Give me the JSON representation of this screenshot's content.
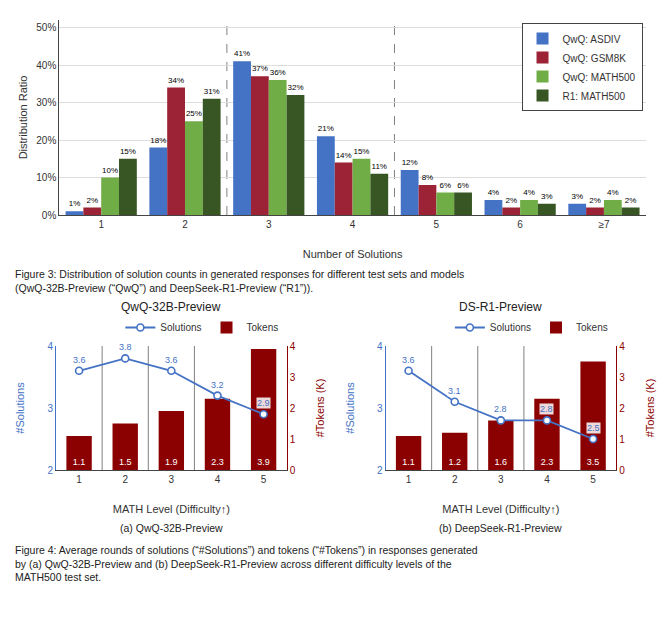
{
  "chart_data": [
    {
      "type": "bar",
      "categories": [
        "1",
        "2",
        "3",
        "4",
        "5",
        "6",
        "≥7"
      ],
      "series": [
        {
          "name": "QwQ: ASDIV",
          "color": "#4472C4",
          "values": [
            1,
            18,
            41,
            21,
            12,
            4,
            3
          ],
          "value_labels": [
            "1%",
            "18%",
            "41%",
            "21%",
            "12%",
            "4%",
            "3%"
          ]
        },
        {
          "name": "QwQ: GSM8K",
          "color": "#9B2335",
          "values": [
            2,
            34,
            37,
            14,
            8,
            2,
            2
          ],
          "value_labels": [
            "2%",
            "34%",
            "37%",
            "14%",
            "8%",
            "2%",
            "2%"
          ]
        },
        {
          "name": "QwQ: MATH500",
          "color": "#70AD47",
          "values": [
            10,
            25,
            36,
            15,
            6,
            4,
            4
          ],
          "value_labels": [
            "10%",
            "25%",
            "36%",
            "15%",
            "6%",
            "4%",
            "4%"
          ]
        },
        {
          "name": "R1: MATH500",
          "color": "#375623",
          "values": [
            15,
            31,
            32,
            11,
            6,
            3,
            2
          ],
          "value_labels": [
            "15%",
            "31%",
            "32%",
            "11%",
            "6%",
            "3%",
            "2%"
          ]
        }
      ],
      "xlabel": "Number of Solutions",
      "ylabel": "Distribution Ratio",
      "ylim": [
        0,
        52
      ],
      "yticks": [
        {
          "value": 0,
          "label": "0%"
        },
        {
          "value": 10,
          "label": "10%"
        },
        {
          "value": 20,
          "label": "20%"
        },
        {
          "value": 30,
          "label": "30%"
        },
        {
          "value": 40,
          "label": "40%"
        },
        {
          "value": 50,
          "label": "50%"
        }
      ],
      "grid": true,
      "legend": "upper right",
      "data_labels": true,
      "vlines": [
        1.5,
        3.5
      ],
      "annotations": [
        "Figure 3: Distribution of solution counts in generated responses for different test sets and models\n(QwQ-32B-Preview (“QwQ”) and DeepSeek-R1-Preview (“R1”))."
      ]
    },
    {
      "type": "combo",
      "title": "QwQ-32B-Preview",
      "subtitle": "(a) QwQ-32B-Preview",
      "x": [
        1,
        2,
        3,
        4,
        5
      ],
      "xlim": [
        0.5,
        5.5
      ],
      "xticks": [
        1,
        2,
        3,
        4,
        5
      ],
      "xlabel": "MATH Level (Difficulty↑)",
      "ylabel": "#Solutions",
      "y2label": "#Tokens (K)",
      "ylim": [
        2,
        4
      ],
      "yticks": [
        2,
        3,
        4
      ],
      "y2lim": [
        0,
        4
      ],
      "y2ticks": [
        0,
        1,
        2,
        3,
        4
      ],
      "series": [
        {
          "name": "Solutions",
          "type": "line",
          "marker": "circle",
          "color": "#4472C4",
          "values": [
            3.6,
            3.8,
            3.6,
            3.2,
            2.9
          ]
        },
        {
          "name": "Tokens",
          "type": "bar",
          "axis": "y2",
          "color": "#8B0000",
          "values": [
            1.1,
            1.5,
            1.9,
            2.3,
            3.9
          ]
        }
      ],
      "vlines": [
        1.5,
        2.5,
        3.5
      ],
      "grid": false,
      "legend": "upper right",
      "data_labels": true
    },
    {
      "type": "combo",
      "title": "DS-R1-Preview",
      "subtitle": "(b) DeepSeek-R1-Preview",
      "x": [
        1,
        2,
        3,
        4,
        5
      ],
      "xlim": [
        0.5,
        5.5
      ],
      "xticks": [
        1,
        2,
        3,
        4,
        5
      ],
      "xlabel": "MATH Level (Difficulty↑)",
      "ylabel": "#Solutions",
      "y2label": "#Tokens (K)",
      "ylim": [
        2,
        4
      ],
      "yticks": [
        2,
        3,
        4
      ],
      "y2lim": [
        0,
        4
      ],
      "y2ticks": [
        0,
        1,
        2,
        3,
        4
      ],
      "series": [
        {
          "name": "Solutions",
          "type": "line",
          "marker": "circle",
          "color": "#4472C4",
          "values": [
            3.6,
            3.1,
            2.8,
            2.8,
            2.5
          ]
        },
        {
          "name": "Tokens",
          "type": "bar",
          "axis": "y2",
          "color": "#8B0000",
          "values": [
            1.1,
            1.2,
            1.6,
            2.3,
            3.5
          ]
        }
      ],
      "vlines": [
        1.5,
        2.5,
        3.5
      ],
      "grid": false,
      "legend": "upper right",
      "data_labels": true,
      "annotations": [
        "Figure 4: Average rounds of solutions (“#Solutions”) and tokens (“#Tokens”) in responses generated\nby (a) QwQ-32B-Preview and (b) DeepSeek-R1-Preview across different difficulty levels of the\nMATH500 test set."
      ]
    }
  ]
}
